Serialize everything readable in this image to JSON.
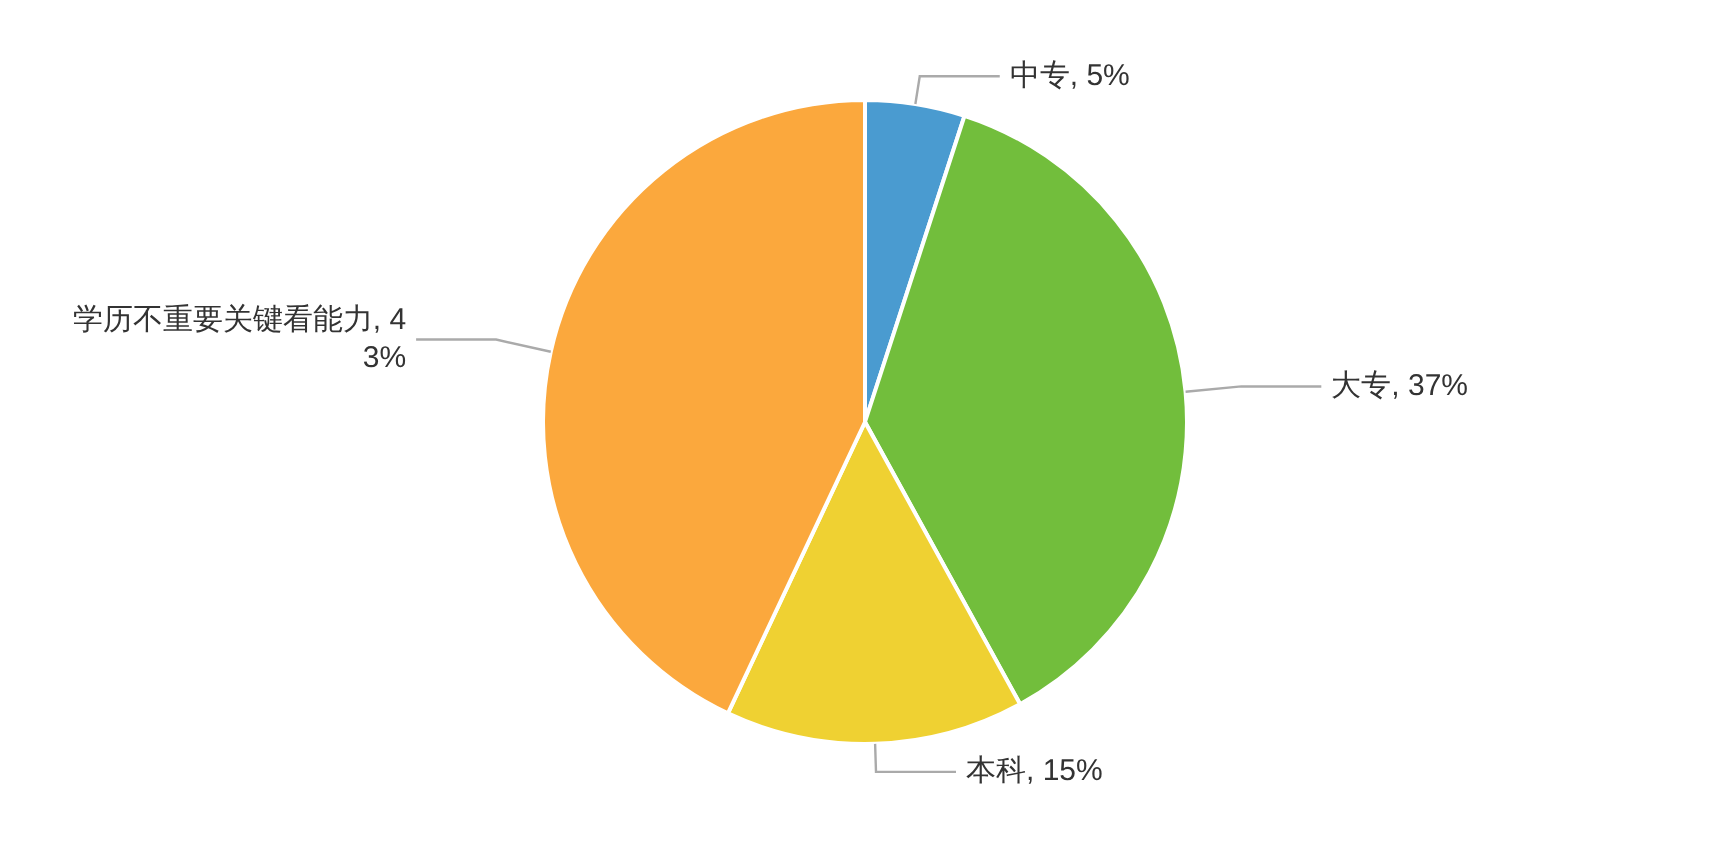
{
  "chart_data": {
    "type": "pie",
    "categories": [
      "中专",
      "大专",
      "本科",
      "学历不重要关键看能力"
    ],
    "values": [
      5,
      37,
      15,
      43
    ],
    "value_labels": [
      "5%",
      "37%",
      "15%",
      "43%"
    ],
    "colors": [
      "#4a9bd0",
      "#72be3c",
      "#efd132",
      "#fba83d"
    ],
    "legend": false
  }
}
